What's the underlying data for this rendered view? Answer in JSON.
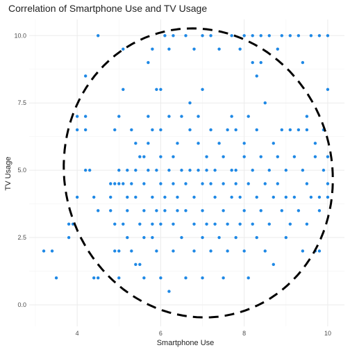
{
  "chart_data": {
    "type": "scatter",
    "title": "Correlation of Smartphone Use and TV Usage",
    "xlabel": "Smartphone Use",
    "ylabel": "TV Usage",
    "xlim": [
      2.85,
      10.4
    ],
    "ylim": [
      -0.8,
      10.6
    ],
    "x_ticks": [
      4,
      6,
      8,
      10
    ],
    "x_tick_labels": [
      "4",
      "6",
      "8",
      "10"
    ],
    "y_ticks": [
      0,
      2.5,
      5,
      7.5,
      10
    ],
    "y_tick_labels": [
      "0.0",
      "2.5",
      "5.0",
      "7.5",
      "10.0"
    ],
    "grid": true,
    "legend": "none",
    "point_color": "#1e88e5",
    "ellipse": {
      "style": "dashed",
      "color": "#000000",
      "center": [
        6.9,
        4.9
      ],
      "x_extent": [
        3.7,
        10.1
      ],
      "y_extent": [
        -0.5,
        10.3
      ]
    },
    "points": [
      [
        3.2,
        2.0
      ],
      [
        3.5,
        1.0
      ],
      [
        3.4,
        2.0
      ],
      [
        3.8,
        2.5
      ],
      [
        3.8,
        3.0
      ],
      [
        3.9,
        3.0
      ],
      [
        4.0,
        4.0
      ],
      [
        4.0,
        6.5
      ],
      [
        4.0,
        7.0
      ],
      [
        4.2,
        6.5
      ],
      [
        4.2,
        7.0
      ],
      [
        4.2,
        8.5
      ],
      [
        4.2,
        5.0
      ],
      [
        4.3,
        5.0
      ],
      [
        4.4,
        4.0
      ],
      [
        4.4,
        1.0
      ],
      [
        4.5,
        1.0
      ],
      [
        4.5,
        3.5
      ],
      [
        4.5,
        10.0
      ],
      [
        4.8,
        4.5
      ],
      [
        4.8,
        4.0
      ],
      [
        4.8,
        3.5
      ],
      [
        4.9,
        4.5
      ],
      [
        4.9,
        6.5
      ],
      [
        4.9,
        2.0
      ],
      [
        4.9,
        3.0
      ],
      [
        5.0,
        4.5
      ],
      [
        5.0,
        5.0
      ],
      [
        5.0,
        7.0
      ],
      [
        5.0,
        2.0
      ],
      [
        5.0,
        1.0
      ],
      [
        5.1,
        3.0
      ],
      [
        5.1,
        4.5
      ],
      [
        5.1,
        8.0
      ],
      [
        5.1,
        9.5
      ],
      [
        5.2,
        5.0
      ],
      [
        5.2,
        4.0
      ],
      [
        5.2,
        3.5
      ],
      [
        5.2,
        2.5
      ],
      [
        5.3,
        4.5
      ],
      [
        5.3,
        6.5
      ],
      [
        5.3,
        2.0
      ],
      [
        5.4,
        1.5
      ],
      [
        5.4,
        4.0
      ],
      [
        5.4,
        5.0
      ],
      [
        5.4,
        6.0
      ],
      [
        5.5,
        5.5
      ],
      [
        5.5,
        3.0
      ],
      [
        5.5,
        1.5
      ],
      [
        5.6,
        1.0
      ],
      [
        5.6,
        2.5
      ],
      [
        5.6,
        3.5
      ],
      [
        5.6,
        4.5
      ],
      [
        5.6,
        5.5
      ],
      [
        5.7,
        6.0
      ],
      [
        5.7,
        7.0
      ],
      [
        5.7,
        9.0
      ],
      [
        5.7,
        5.0
      ],
      [
        5.8,
        3.0
      ],
      [
        5.8,
        4.0
      ],
      [
        5.8,
        6.5
      ],
      [
        5.8,
        9.5
      ],
      [
        5.8,
        2.5
      ],
      [
        5.9,
        5.0
      ],
      [
        5.9,
        8.0
      ],
      [
        5.9,
        2.0
      ],
      [
        5.9,
        3.5
      ],
      [
        6.0,
        1.0
      ],
      [
        6.0,
        3.0
      ],
      [
        6.0,
        4.5
      ],
      [
        6.0,
        5.5
      ],
      [
        6.0,
        6.5
      ],
      [
        6.0,
        8.0
      ],
      [
        6.1,
        4.0
      ],
      [
        6.1,
        3.5
      ],
      [
        6.1,
        10.0
      ],
      [
        6.2,
        9.5
      ],
      [
        6.2,
        5.0
      ],
      [
        6.2,
        7.0
      ],
      [
        6.2,
        0.5
      ],
      [
        6.3,
        10.0
      ],
      [
        6.3,
        2.0
      ],
      [
        6.3,
        3.0
      ],
      [
        6.3,
        4.5
      ],
      [
        6.3,
        5.5
      ],
      [
        6.4,
        3.5
      ],
      [
        6.4,
        6.0
      ],
      [
        6.4,
        4.0
      ],
      [
        6.5,
        5.0
      ],
      [
        6.5,
        7.0
      ],
      [
        6.5,
        2.5
      ],
      [
        6.6,
        1.0
      ],
      [
        6.6,
        10.0
      ],
      [
        6.6,
        3.5
      ],
      [
        6.6,
        4.5
      ],
      [
        6.7,
        6.5
      ],
      [
        6.7,
        7.5
      ],
      [
        6.7,
        5.0
      ],
      [
        6.8,
        3.0
      ],
      [
        6.8,
        2.0
      ],
      [
        6.8,
        4.0
      ],
      [
        6.8,
        9.5
      ],
      [
        6.9,
        5.0
      ],
      [
        6.9,
        6.0
      ],
      [
        6.9,
        7.0
      ],
      [
        7.0,
        3.5
      ],
      [
        7.0,
        4.5
      ],
      [
        7.0,
        2.5
      ],
      [
        7.0,
        1.0
      ],
      [
        7.0,
        8.0
      ],
      [
        7.0,
        10.0
      ],
      [
        7.1,
        5.0
      ],
      [
        7.1,
        3.0
      ],
      [
        7.1,
        5.5
      ],
      [
        7.2,
        4.5
      ],
      [
        7.2,
        2.0
      ],
      [
        7.2,
        6.5
      ],
      [
        7.2,
        10.0
      ],
      [
        7.3,
        3.0
      ],
      [
        7.3,
        4.0
      ],
      [
        7.3,
        5.0
      ],
      [
        7.4,
        6.0
      ],
      [
        7.4,
        2.5
      ],
      [
        7.4,
        9.5
      ],
      [
        7.5,
        4.5
      ],
      [
        7.5,
        3.5
      ],
      [
        7.5,
        5.5
      ],
      [
        7.5,
        1.0
      ],
      [
        7.6,
        6.5
      ],
      [
        7.6,
        3.0
      ],
      [
        7.6,
        2.0
      ],
      [
        7.7,
        5.0
      ],
      [
        7.7,
        4.0
      ],
      [
        7.7,
        7.0
      ],
      [
        7.7,
        10.0
      ],
      [
        7.8,
        4.5
      ],
      [
        7.8,
        2.5
      ],
      [
        7.8,
        6.5
      ],
      [
        7.8,
        5.0
      ],
      [
        7.9,
        3.0
      ],
      [
        7.9,
        9.5
      ],
      [
        7.9,
        4.0
      ],
      [
        8.0,
        5.5
      ],
      [
        8.0,
        10.0
      ],
      [
        8.0,
        6.0
      ],
      [
        8.0,
        3.5
      ],
      [
        8.0,
        2.0
      ],
      [
        8.1,
        4.5
      ],
      [
        8.1,
        7.0
      ],
      [
        8.1,
        1.0
      ],
      [
        8.2,
        5.0
      ],
      [
        8.2,
        3.0
      ],
      [
        8.2,
        9.0
      ],
      [
        8.2,
        10.0
      ],
      [
        8.3,
        6.5
      ],
      [
        8.3,
        4.0
      ],
      [
        8.3,
        8.5
      ],
      [
        8.3,
        2.5
      ],
      [
        8.4,
        5.5
      ],
      [
        8.4,
        3.5
      ],
      [
        8.4,
        9.0
      ],
      [
        8.4,
        10.0
      ],
      [
        8.5,
        4.5
      ],
      [
        8.5,
        7.5
      ],
      [
        8.5,
        2.0
      ],
      [
        8.6,
        10.0
      ],
      [
        8.6,
        5.0
      ],
      [
        8.6,
        3.0
      ],
      [
        8.7,
        4.0
      ],
      [
        8.7,
        6.0
      ],
      [
        8.7,
        1.5
      ],
      [
        8.8,
        9.5
      ],
      [
        8.8,
        5.5
      ],
      [
        8.8,
        4.5
      ],
      [
        8.9,
        6.5
      ],
      [
        8.9,
        3.5
      ],
      [
        8.9,
        10.0
      ],
      [
        9.0,
        5.0
      ],
      [
        9.0,
        4.0
      ],
      [
        9.0,
        2.5
      ],
      [
        9.1,
        6.5
      ],
      [
        9.1,
        3.0
      ],
      [
        9.1,
        10.0
      ],
      [
        9.2,
        5.5
      ],
      [
        9.2,
        4.0
      ],
      [
        9.3,
        6.5
      ],
      [
        9.3,
        3.5
      ],
      [
        9.3,
        10.0
      ],
      [
        9.4,
        5.0
      ],
      [
        9.4,
        2.0
      ],
      [
        9.4,
        9.0
      ],
      [
        9.5,
        4.5
      ],
      [
        9.5,
        7.0
      ],
      [
        9.5,
        3.0
      ],
      [
        9.5,
        6.5
      ],
      [
        9.6,
        10.0
      ],
      [
        9.6,
        4.0
      ],
      [
        9.7,
        2.0
      ],
      [
        9.7,
        5.5
      ],
      [
        9.7,
        6.0
      ],
      [
        9.8,
        4.0
      ],
      [
        9.8,
        3.5
      ],
      [
        9.8,
        2.0
      ],
      [
        9.8,
        10.0
      ],
      [
        9.9,
        5.0
      ],
      [
        9.9,
        6.5
      ],
      [
        10.0,
        4.5
      ],
      [
        10.0,
        5.5
      ],
      [
        10.0,
        10.0
      ],
      [
        10.0,
        8.0
      ],
      [
        10.0,
        4.0
      ]
    ]
  }
}
